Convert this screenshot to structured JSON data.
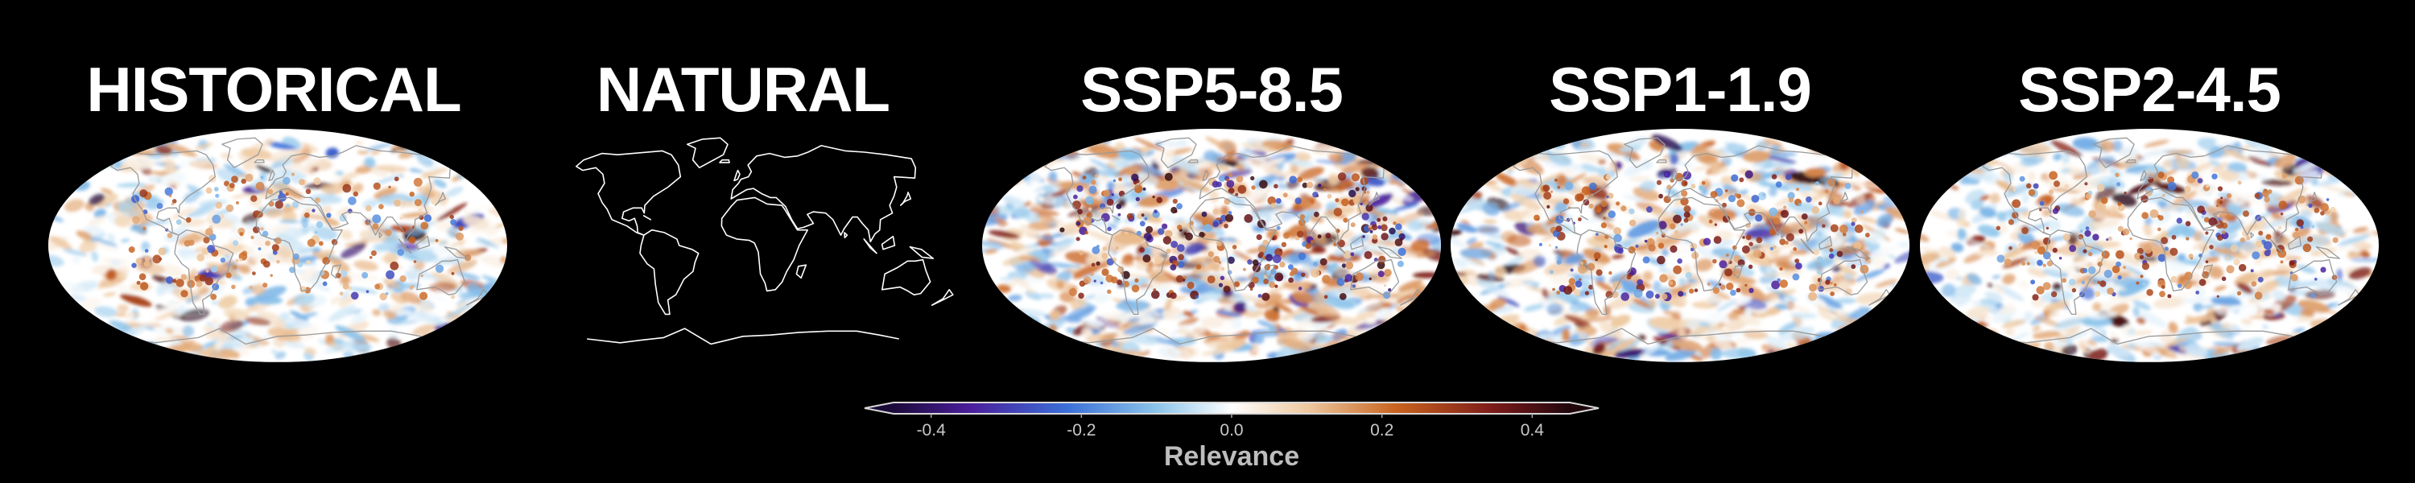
{
  "chart_data": {
    "type": "heatmap",
    "projection": "Robinson (global)",
    "panels": [
      {
        "id": "historical",
        "title": "HISTORICAL",
        "style": "relevance-map",
        "seed": 11,
        "intensity": 0.55
      },
      {
        "id": "natural",
        "title": "NATURAL",
        "style": "coastline-only",
        "seed": 23,
        "intensity": 0.0
      },
      {
        "id": "ssp585",
        "title": "SSP5-8.5",
        "style": "relevance-map",
        "seed": 37,
        "intensity": 1.0
      },
      {
        "id": "ssp119",
        "title": "SSP1-1.9",
        "style": "relevance-map",
        "seed": 53,
        "intensity": 0.8
      },
      {
        "id": "ssp245",
        "title": "SSP2-4.5",
        "style": "relevance-map",
        "seed": 71,
        "intensity": 0.7
      }
    ],
    "colorbar": {
      "label": "Relevance",
      "range": [
        -0.45,
        0.45
      ],
      "ticks": [
        -0.4,
        -0.2,
        0.0,
        0.2,
        0.4
      ],
      "tick_labels": [
        "-0.4",
        "-0.2",
        "0.0",
        "0.2",
        "0.4"
      ],
      "extend": "both",
      "colormap_stops": [
        {
          "value": -0.45,
          "color": "#1a0a3a"
        },
        {
          "value": -0.35,
          "color": "#4b1d9a"
        },
        {
          "value": -0.22,
          "color": "#3a6fd8"
        },
        {
          "value": -0.1,
          "color": "#8cc4ea"
        },
        {
          "value": 0.0,
          "color": "#ffffff"
        },
        {
          "value": 0.1,
          "color": "#eec9a0"
        },
        {
          "value": 0.22,
          "color": "#c8621e"
        },
        {
          "value": 0.35,
          "color": "#7a1a1a"
        },
        {
          "value": 0.45,
          "color": "#20060c"
        }
      ]
    }
  },
  "colors": {
    "background": "#000000",
    "text": "#ffffff",
    "coastline_on_map": "#9a9a9a",
    "coastline_natural": "#ffffff",
    "ocean_base": "#ffffff"
  }
}
